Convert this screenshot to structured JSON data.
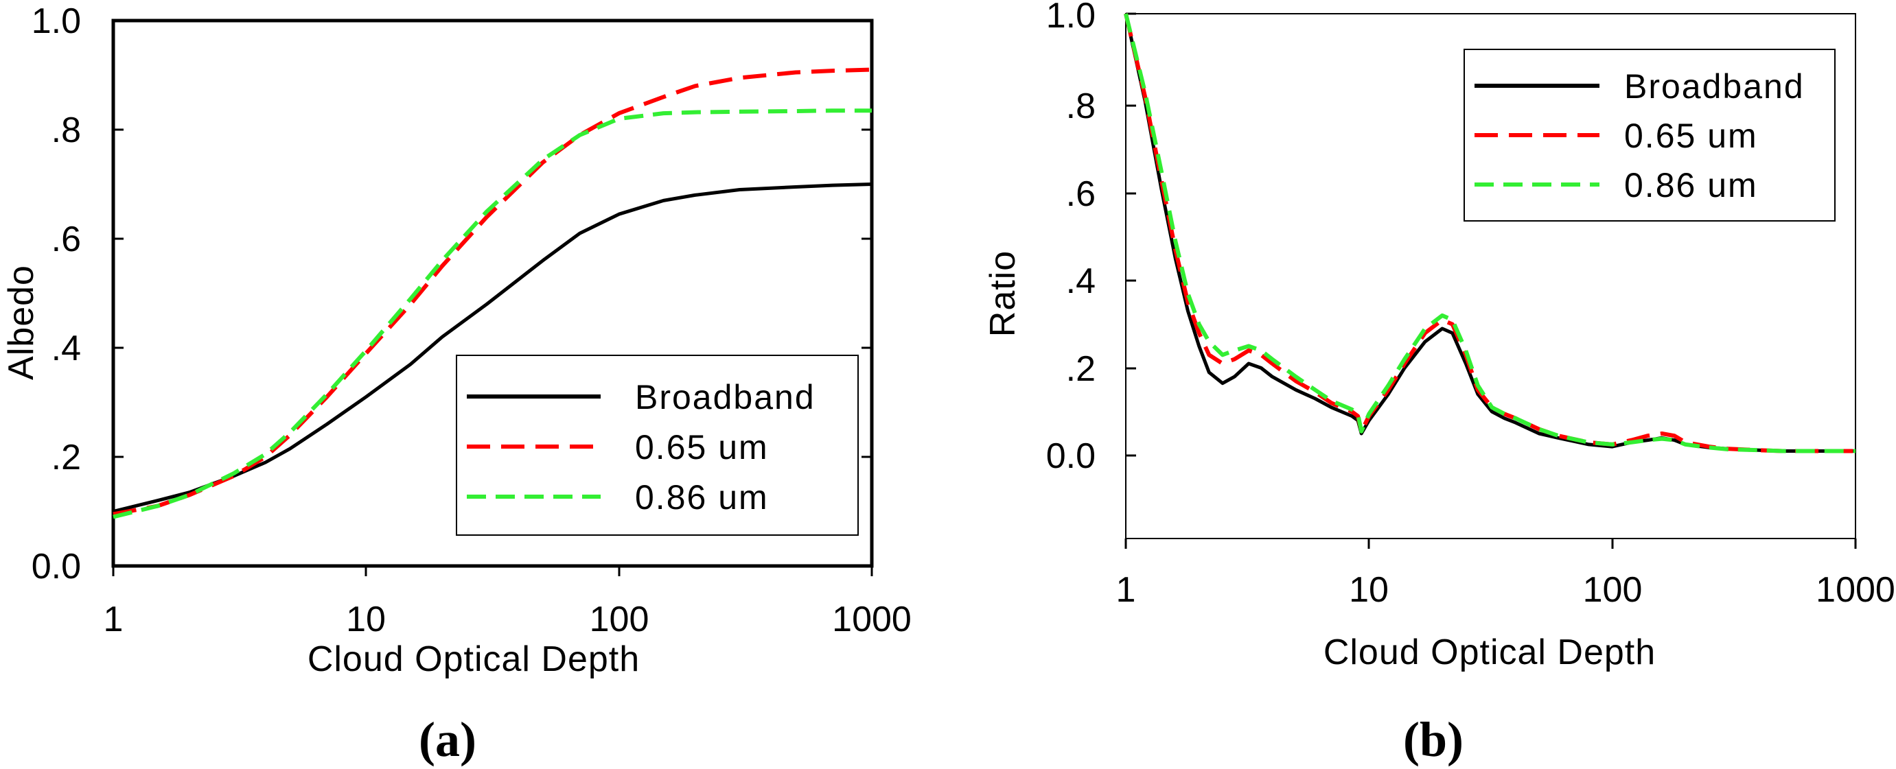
{
  "chart_data": [
    {
      "type": "line",
      "panel_label": "(a)",
      "xlabel": "Cloud Optical Depth",
      "ylabel": "Albedo",
      "xscale": "log",
      "xlim": [
        1,
        1000
      ],
      "ylim": [
        0,
        1
      ],
      "x_ticks": [
        1,
        10,
        100,
        1000
      ],
      "x_tick_labels": [
        "1",
        "10",
        "100",
        "1000"
      ],
      "y_ticks": [
        0,
        0.2,
        0.4,
        0.6,
        0.8,
        1.0
      ],
      "y_tick_labels": [
        "0.0",
        ".2",
        ".4",
        ".6",
        ".8",
        "1.0"
      ],
      "legend_position": "center-right",
      "series": [
        {
          "name": "Broadband",
          "color": "#000000",
          "style": "solid",
          "x": [
            1,
            1.5,
            2,
            3,
            4,
            5,
            7,
            10,
            15,
            20,
            30,
            50,
            70,
            100,
            150,
            200,
            300,
            500,
            700,
            1000
          ],
          "y": [
            0.1,
            0.12,
            0.135,
            0.165,
            0.19,
            0.215,
            0.26,
            0.31,
            0.37,
            0.42,
            0.48,
            0.56,
            0.61,
            0.645,
            0.67,
            0.68,
            0.69,
            0.695,
            0.698,
            0.7
          ]
        },
        {
          "name": "0.65 um",
          "color": "#ff0000",
          "style": "dashed",
          "x": [
            1,
            1.5,
            2,
            3,
            4,
            5,
            7,
            10,
            15,
            20,
            30,
            50,
            70,
            100,
            150,
            200,
            300,
            500,
            700,
            1000
          ],
          "y": [
            0.095,
            0.11,
            0.13,
            0.165,
            0.2,
            0.24,
            0.31,
            0.39,
            0.48,
            0.55,
            0.64,
            0.74,
            0.79,
            0.83,
            0.86,
            0.88,
            0.895,
            0.905,
            0.908,
            0.91
          ]
        },
        {
          "name": "0.86 um",
          "color": "#33ee33",
          "style": "dashed",
          "x": [
            1,
            1.5,
            2,
            3,
            4,
            5,
            7,
            10,
            15,
            20,
            30,
            50,
            70,
            100,
            150,
            200,
            300,
            500,
            700,
            1000
          ],
          "y": [
            0.09,
            0.11,
            0.13,
            0.17,
            0.205,
            0.245,
            0.315,
            0.395,
            0.49,
            0.56,
            0.65,
            0.745,
            0.79,
            0.82,
            0.83,
            0.832,
            0.833,
            0.834,
            0.835,
            0.835
          ]
        }
      ]
    },
    {
      "type": "line",
      "panel_label": "(b)",
      "xlabel": "Cloud Optical Depth",
      "ylabel": "Ratio",
      "xscale": "log",
      "xlim": [
        1,
        1000
      ],
      "ylim": [
        -0.2,
        1
      ],
      "x_ticks": [
        1,
        10,
        100,
        1000
      ],
      "x_tick_labels": [
        "1",
        "10",
        "100",
        "1000"
      ],
      "y_ticks": [
        0,
        0.2,
        0.4,
        0.6,
        0.8,
        1.0
      ],
      "y_tick_labels": [
        "0.0",
        ".2",
        ".4",
        ".6",
        ".8",
        "1.0"
      ],
      "legend_position": "top-right",
      "series": [
        {
          "name": "Broadband",
          "color": "#000000",
          "style": "solid",
          "x": [
            1,
            1.2,
            1.4,
            1.6,
            1.8,
            2.0,
            2.2,
            2.5,
            2.8,
            3.2,
            3.6,
            4.0,
            5.0,
            6.0,
            7.0,
            8.5,
            9.0,
            9.3,
            10,
            12,
            14,
            17,
            20,
            22,
            25,
            28,
            32,
            36,
            40,
            50,
            60,
            80,
            100,
            120,
            140,
            160,
            180,
            200,
            250,
            300,
            400,
            500,
            700,
            1000
          ],
          "y": [
            1.0,
            0.8,
            0.6,
            0.44,
            0.32,
            0.24,
            0.18,
            0.155,
            0.17,
            0.2,
            0.19,
            0.17,
            0.14,
            0.12,
            0.1,
            0.08,
            0.07,
            0.04,
            0.07,
            0.13,
            0.19,
            0.25,
            0.28,
            0.27,
            0.2,
            0.13,
            0.09,
            0.075,
            0.065,
            0.04,
            0.03,
            0.015,
            0.01,
            0.02,
            0.025,
            0.03,
            0.025,
            0.015,
            0.008,
            0.005,
            0.002,
            0.0,
            0.0,
            0.0
          ]
        },
        {
          "name": "0.65 um",
          "color": "#ff0000",
          "style": "dashed",
          "x": [
            1,
            1.2,
            1.4,
            1.6,
            1.8,
            2.0,
            2.2,
            2.5,
            2.8,
            3.2,
            3.6,
            4.0,
            5.0,
            6.0,
            7.0,
            8.5,
            9.0,
            9.3,
            10,
            12,
            14,
            17,
            20,
            22,
            25,
            28,
            32,
            36,
            40,
            50,
            60,
            80,
            100,
            120,
            140,
            160,
            180,
            200,
            250,
            300,
            400,
            500,
            700,
            1000
          ],
          "y": [
            1.0,
            0.81,
            0.62,
            0.46,
            0.34,
            0.27,
            0.22,
            0.2,
            0.21,
            0.23,
            0.22,
            0.2,
            0.16,
            0.135,
            0.11,
            0.09,
            0.08,
            0.045,
            0.08,
            0.14,
            0.2,
            0.27,
            0.3,
            0.29,
            0.22,
            0.14,
            0.1,
            0.085,
            0.075,
            0.05,
            0.035,
            0.02,
            0.015,
            0.025,
            0.035,
            0.04,
            0.035,
            0.02,
            0.01,
            0.005,
            0.002,
            0.0,
            0.0,
            0.0
          ]
        },
        {
          "name": "0.86 um",
          "color": "#33ee33",
          "style": "dashed",
          "x": [
            1,
            1.2,
            1.4,
            1.6,
            1.8,
            2.0,
            2.2,
            2.5,
            2.8,
            3.2,
            3.6,
            4.0,
            5.0,
            6.0,
            7.0,
            8.5,
            9.0,
            9.3,
            10,
            12,
            14,
            17,
            20,
            22,
            25,
            28,
            32,
            36,
            40,
            50,
            60,
            80,
            100,
            120,
            140,
            160,
            180,
            200,
            250,
            300,
            400,
            500,
            700,
            1000
          ],
          "y": [
            1.0,
            0.82,
            0.64,
            0.48,
            0.36,
            0.29,
            0.25,
            0.22,
            0.23,
            0.24,
            0.23,
            0.21,
            0.17,
            0.14,
            0.115,
            0.095,
            0.085,
            0.045,
            0.085,
            0.15,
            0.21,
            0.28,
            0.31,
            0.3,
            0.23,
            0.15,
            0.1,
            0.085,
            0.075,
            0.05,
            0.035,
            0.02,
            0.015,
            0.02,
            0.025,
            0.028,
            0.025,
            0.015,
            0.008,
            0.004,
            0.002,
            0.0,
            0.0,
            0.0
          ]
        }
      ]
    }
  ]
}
